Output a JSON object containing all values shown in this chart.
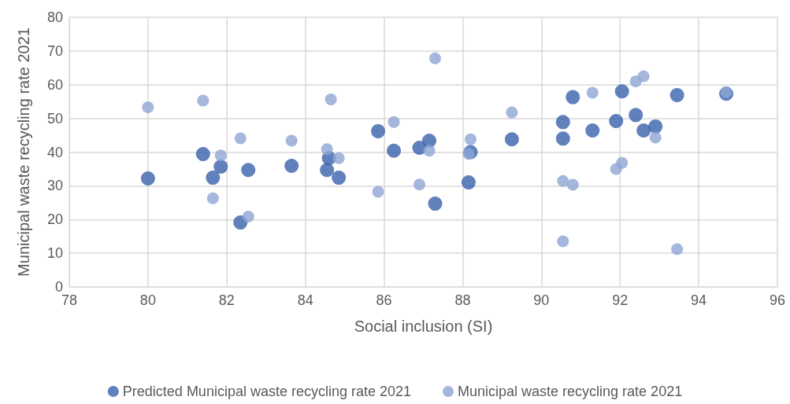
{
  "chart_data": {
    "type": "scatter",
    "xlabel": "Social inclusion (SI)",
    "ylabel": "Municipal waste recycling rate 2021",
    "xlim": [
      78,
      96
    ],
    "xticks": [
      78,
      80,
      82,
      84,
      86,
      88,
      90,
      92,
      94,
      96
    ],
    "ylim": [
      0,
      80
    ],
    "yticks": [
      0,
      10,
      20,
      30,
      40,
      50,
      60,
      70,
      80
    ],
    "grid": true,
    "legend": "bottom",
    "marker": "circle",
    "x": [
      80.0,
      81.4,
      81.65,
      81.85,
      82.35,
      82.55,
      83.65,
      84.55,
      84.6,
      84.65,
      84.85,
      85.85,
      86.25,
      86.9,
      87.15,
      87.3,
      88.15,
      88.2,
      89.25,
      90.55,
      90.55,
      90.8,
      91.3,
      91.9,
      92.05,
      92.4,
      92.6,
      92.9,
      93.45,
      94.7
    ],
    "series": [
      {
        "name": "Predicted Municipal waste recycling rate 2021",
        "color": "#3a62ad",
        "values": [
          32.2,
          39.4,
          32.4,
          35.7,
          19.1,
          34.7,
          35.9,
          34.7,
          38.2,
          null,
          32.4,
          46.2,
          40.4,
          41.3,
          43.4,
          24.7,
          31.0,
          40.0,
          43.8,
          44.0,
          48.9,
          56.3,
          46.4,
          49.2,
          58.0,
          51.0,
          46.4,
          47.6,
          56.9,
          57.3
        ]
      },
      {
        "name": "Municipal waste recycling rate 2021",
        "color": "#8fa5d4",
        "values": [
          53.3,
          55.3,
          26.3,
          39.0,
          44.1,
          20.9,
          43.4,
          40.9,
          null,
          55.6,
          38.2,
          28.2,
          48.9,
          30.4,
          40.4,
          67.8,
          39.5,
          43.8,
          51.8,
          13.5,
          31.4,
          30.3,
          57.6,
          35.0,
          36.8,
          61.0,
          62.5,
          44.3,
          11.2,
          57.8
        ]
      }
    ]
  }
}
